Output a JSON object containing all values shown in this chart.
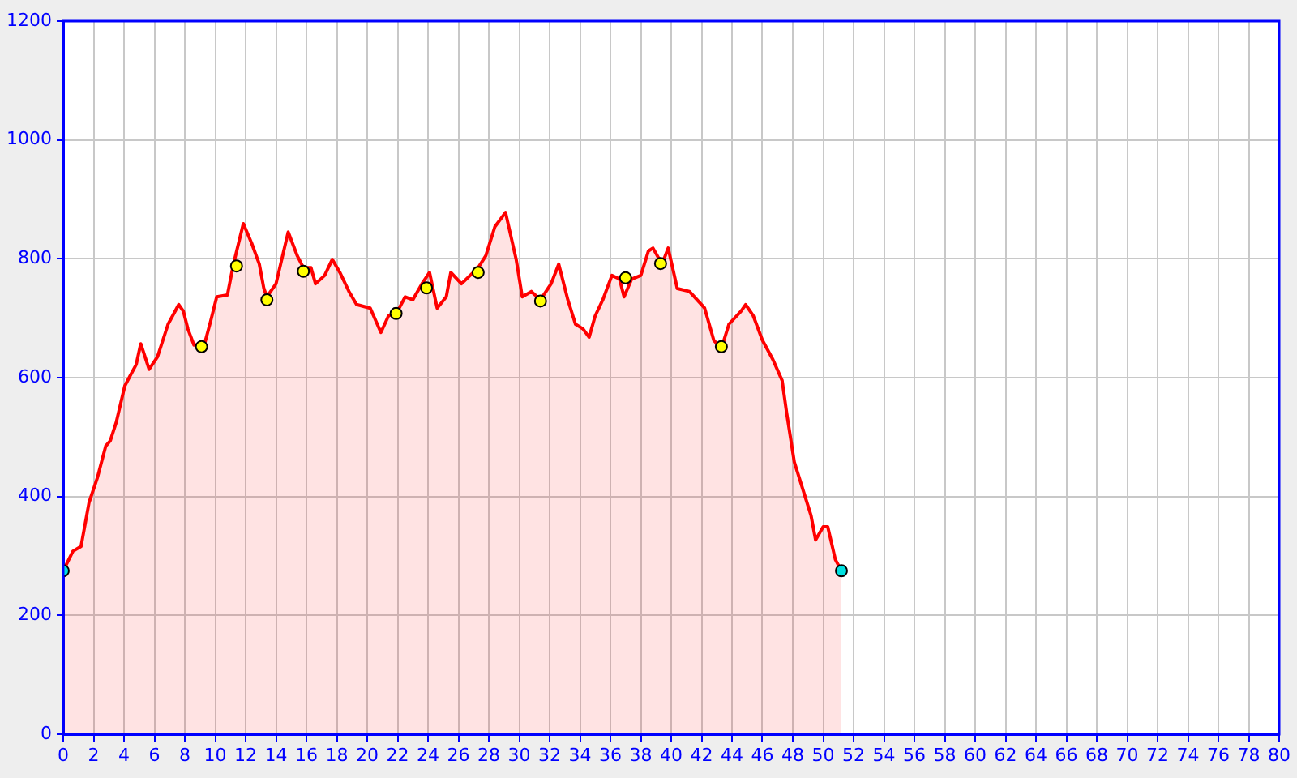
{
  "chart_data": {
    "type": "area",
    "xlim": [
      0,
      80
    ],
    "ylim": [
      0,
      1200
    ],
    "xticks": [
      0,
      2,
      4,
      6,
      8,
      10,
      12,
      14,
      16,
      18,
      20,
      22,
      24,
      26,
      28,
      30,
      32,
      34,
      36,
      38,
      40,
      42,
      44,
      46,
      48,
      50,
      52,
      54,
      56,
      58,
      60,
      62,
      64,
      66,
      68,
      70,
      72,
      74,
      76,
      78,
      80
    ],
    "yticks": [
      0,
      200,
      400,
      600,
      800,
      1000,
      1200
    ],
    "grid": true,
    "legend": false,
    "series": [
      {
        "type": "area",
        "color": "#ff0000",
        "x": [
          0,
          0.64,
          1.17,
          1.7,
          2.24,
          2.8,
          3.1,
          3.5,
          4.05,
          4.4,
          4.8,
          5.1,
          5.65,
          6.2,
          6.9,
          7.6,
          7.9,
          8.2,
          8.6,
          9.3,
          9.7,
          10.1,
          10.8,
          11.2,
          11.85,
          12.4,
          12.9,
          13.2,
          13.4,
          14,
          14.8,
          15.4,
          15.8,
          16.3,
          16.6,
          17.2,
          17.7,
          18.2,
          18.8,
          19.3,
          20.2,
          20.9,
          21.4,
          22,
          22.5,
          23,
          23.6,
          24.1,
          24.6,
          25.2,
          25.5,
          26.2,
          27.3,
          27.8,
          28.4,
          29.1,
          29.8,
          30.2,
          30.8,
          31.4,
          32.1,
          32.6,
          33.2,
          33.7,
          34.2,
          34.6,
          35,
          35.5,
          36.1,
          36.6,
          36.9,
          37.4,
          38,
          38.5,
          38.8,
          39.4,
          39.8,
          40.4,
          41.2,
          41.7,
          42.2,
          42.8,
          43.3,
          43.8,
          44.6,
          44.9,
          45.4,
          46,
          46.7,
          47.3,
          47.6,
          48.1,
          48.6,
          49.2,
          49.5,
          50,
          50.3,
          50.8,
          51.2
        ],
        "values": [
          275,
          308,
          316,
          390,
          431,
          485,
          494,
          526,
          586,
          603,
          622,
          657,
          614,
          635,
          690,
          723,
          712,
          682,
          655,
          657,
          695,
          736,
          739,
          791,
          859,
          826,
          791,
          750,
          736,
          758,
          845,
          805,
          785,
          785,
          758,
          772,
          799,
          777,
          745,
          723,
          717,
          676,
          704,
          712,
          736,
          731,
          758,
          777,
          717,
          736,
          777,
          758,
          785,
          805,
          854,
          878,
          799,
          736,
          745,
          731,
          758,
          791,
          731,
          690,
          682,
          668,
          704,
          731,
          772,
          766,
          736,
          766,
          772,
          813,
          818,
          791,
          818,
          750,
          745,
          731,
          717,
          663,
          649,
          690,
          712,
          723,
          704,
          663,
          630,
          595,
          540,
          458,
          417,
          368,
          327,
          349,
          349,
          294,
          275
        ]
      },
      {
        "type": "scatter",
        "marker": "circle",
        "colors": [
          "#ffff00",
          "#ffff00",
          "#ffff00",
          "#ffff00",
          "#ffff00",
          "#ffff00",
          "#ffff00",
          "#ffff00",
          "#ffff00",
          "#ffff00",
          "#ffff00"
        ],
        "x": [
          9.1,
          11.4,
          13.4,
          15.8,
          21.9,
          23.9,
          27.3,
          31.4,
          37,
          39.3,
          43.3
        ],
        "values": [
          652,
          788,
          731,
          779,
          708,
          751,
          777,
          729,
          768,
          792,
          652
        ]
      },
      {
        "type": "scatter",
        "marker": "circle",
        "colors": [
          "#00e0e0",
          "#00e0e0"
        ],
        "x": [
          0,
          51.2
        ],
        "values": [
          275,
          275
        ]
      }
    ]
  }
}
